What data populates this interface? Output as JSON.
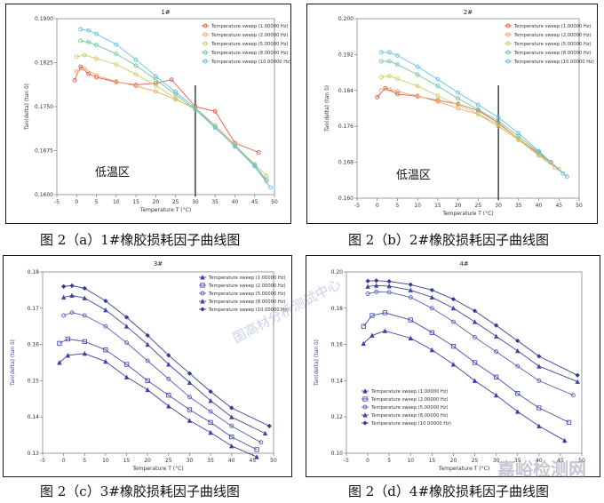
{
  "captions": {
    "a": "图 2（a）1#橡胶损耗因子曲线图",
    "b": "图 2（b）2#橡胶损耗因子曲线图",
    "c": "图 2（c）3#橡胶损耗因子曲线图",
    "d": "图 2（d）4#橡胶损耗因子曲线图"
  },
  "watermark": {
    "center": "国高材分析测试中心",
    "corner": "嘉峪检测网"
  },
  "colors": {
    "a_series": [
      "#e05a4e",
      "#f0a868",
      "#c8d060",
      "#70c8a0",
      "#68c0e8"
    ],
    "b_series": [
      "#e05a4e",
      "#f0a868",
      "#c8d060",
      "#70c8a0",
      "#68c0e8"
    ],
    "c_series": [
      "#3a3fa8",
      "#4a4fb0",
      "#5a5fb8",
      "#4046a0",
      "#343a98"
    ],
    "d_series": [
      "#3a3fa8",
      "#4a4fb0",
      "#5a5fb8",
      "#4046a0",
      "#343a98"
    ],
    "axis": "#666666",
    "cd_ylabel": "#3a3fa8"
  },
  "chart_data": [
    {
      "type": "line",
      "title": "1#",
      "xlabel": "Temperature T (°C)",
      "ylabel": "Tan(delta) (tan δ)",
      "xlim": [
        -5,
        50
      ],
      "ylim": [
        0.16,
        0.19
      ],
      "xticks": [
        -5,
        0,
        5,
        10,
        15,
        20,
        25,
        30,
        35,
        40,
        45,
        50
      ],
      "yticks": [
        0.16,
        0.1675,
        0.175,
        0.1825,
        0.19
      ],
      "ytick_labels": [
        "0.1600",
        "0.1675",
        "0.1750",
        "0.1825",
        "0.1900"
      ],
      "legend_position": "top-right",
      "annotation": "低温区",
      "vline_x": 30,
      "series": [
        {
          "name": "Temperature sweep (1.00000 Hz)",
          "x": [
            -0.5,
            1,
            3,
            5,
            10,
            15,
            20,
            24,
            30,
            35,
            40,
            46
          ],
          "y": [
            0.1795,
            0.1818,
            0.1806,
            0.18,
            0.1792,
            0.1787,
            0.179,
            0.1796,
            0.175,
            0.1742,
            0.1688,
            0.1672
          ]
        },
        {
          "name": "Temperature sweep (2.00000 Hz)",
          "x": [
            0,
            2,
            5,
            10,
            15,
            20,
            25,
            30,
            35,
            40,
            45,
            48
          ],
          "y": [
            0.181,
            0.1815,
            0.1803,
            0.1793,
            0.1785,
            0.1776,
            0.1762,
            0.1748,
            0.1718,
            0.1685,
            0.165,
            0.1622
          ]
        },
        {
          "name": "Temperature sweep (5.00000 Hz)",
          "x": [
            0,
            2,
            5,
            10,
            15,
            20,
            25,
            30,
            35,
            40,
            45,
            48
          ],
          "y": [
            0.1835,
            0.1838,
            0.1832,
            0.1822,
            0.1805,
            0.1786,
            0.1764,
            0.1745,
            0.1715,
            0.1684,
            0.1652,
            0.1632
          ]
        },
        {
          "name": "Temperature sweep (8.00000 Hz)",
          "x": [
            1,
            3,
            5,
            10,
            15,
            20,
            25,
            30,
            35,
            40,
            45,
            48
          ],
          "y": [
            0.1862,
            0.186,
            0.1855,
            0.184,
            0.182,
            0.1796,
            0.1771,
            0.1745,
            0.1714,
            0.1683,
            0.165,
            0.1625
          ]
        },
        {
          "name": "Temperature sweep (10.00000 Hz)",
          "x": [
            1,
            3,
            5,
            10,
            15,
            20,
            25,
            30,
            35,
            40,
            45,
            49
          ],
          "y": [
            0.1882,
            0.188,
            0.1874,
            0.1856,
            0.183,
            0.1802,
            0.1775,
            0.1748,
            0.1715,
            0.1682,
            0.1648,
            0.1612
          ]
        }
      ]
    },
    {
      "type": "line",
      "title": "2#",
      "xlabel": "Temperature T (°C)",
      "ylabel": "Tan(delta) (tan δ)",
      "xlim": [
        -5,
        50
      ],
      "ylim": [
        0.16,
        0.2
      ],
      "xticks": [
        -5,
        0,
        5,
        10,
        15,
        20,
        25,
        30,
        35,
        40,
        45,
        50
      ],
      "yticks": [
        0.16,
        0.168,
        0.176,
        0.184,
        0.192,
        0.2
      ],
      "ytick_labels": [
        "0.160",
        "0.168",
        "0.176",
        "0.184",
        "0.192",
        "0.200"
      ],
      "legend_position": "top-right",
      "annotation": "低温区",
      "vline_x": 30,
      "series": [
        {
          "name": "Temperature sweep (1.00000 Hz)",
          "x": [
            0,
            2,
            5,
            10,
            15,
            20,
            25,
            30,
            35,
            40,
            43
          ],
          "y": [
            0.1825,
            0.1845,
            0.1832,
            0.1827,
            0.1818,
            0.181,
            0.1795,
            0.1768,
            0.1732,
            0.17,
            0.168
          ]
        },
        {
          "name": "Temperature sweep (2.00000 Hz)",
          "x": [
            1,
            3,
            5,
            10,
            15,
            20,
            25,
            30,
            35,
            40,
            44
          ],
          "y": [
            0.184,
            0.1842,
            0.1838,
            0.1828,
            0.1815,
            0.18,
            0.1787,
            0.176,
            0.173,
            0.1695,
            0.1668
          ]
        },
        {
          "name": "Temperature sweep (5.00000 Hz)",
          "x": [
            1,
            3,
            5,
            10,
            15,
            20,
            25,
            30,
            35,
            40,
            45
          ],
          "y": [
            0.187,
            0.1872,
            0.1866,
            0.185,
            0.1828,
            0.1808,
            0.1788,
            0.1765,
            0.1732,
            0.1697,
            0.1665
          ]
        },
        {
          "name": "Temperature sweep (8.00000 Hz)",
          "x": [
            1,
            3,
            5,
            10,
            15,
            20,
            25,
            30,
            35,
            40,
            46
          ],
          "y": [
            0.1905,
            0.1905,
            0.1898,
            0.1875,
            0.185,
            0.1822,
            0.1797,
            0.1772,
            0.1738,
            0.1703,
            0.1655
          ]
        },
        {
          "name": "Temperature sweep (10.00000 Hz)",
          "x": [
            1,
            3,
            5,
            10,
            15,
            20,
            25,
            30,
            35,
            40,
            47
          ],
          "y": [
            0.1925,
            0.1925,
            0.1918,
            0.1893,
            0.1865,
            0.1835,
            0.1808,
            0.178,
            0.1745,
            0.1705,
            0.1648
          ]
        }
      ]
    },
    {
      "type": "line",
      "title": "3#",
      "xlabel": "Temperature T (°C)",
      "ylabel": "Tan(delta) (tan δ)",
      "xlim": [
        -5,
        50
      ],
      "ylim": [
        0.13,
        0.18
      ],
      "xticks": [
        -5,
        0,
        5,
        10,
        15,
        20,
        25,
        30,
        35,
        40,
        45,
        50
      ],
      "yticks": [
        0.13,
        0.14,
        0.15,
        0.16,
        0.17,
        0.18
      ],
      "ytick_labels": [
        "0.13",
        "0.14",
        "0.15",
        "0.16",
        "0.17",
        "0.18"
      ],
      "legend_position": "top-right",
      "series": [
        {
          "name": "Temperature sweep (1.00000 Hz)",
          "x": [
            -1,
            1,
            5,
            10,
            15,
            20,
            25,
            30,
            35,
            40,
            46
          ],
          "y": [
            0.155,
            0.157,
            0.1575,
            0.1553,
            0.151,
            0.1475,
            0.143,
            0.139,
            0.1357,
            0.132,
            0.129
          ]
        },
        {
          "name": "Temperature sweep (2.00000 Hz)",
          "x": [
            -1,
            1,
            5,
            10,
            15,
            20,
            25,
            30,
            35,
            40,
            46
          ],
          "y": [
            0.1603,
            0.1615,
            0.1608,
            0.1585,
            0.1545,
            0.15,
            0.146,
            0.142,
            0.1385,
            0.1345,
            0.131
          ]
        },
        {
          "name": "Temperature sweep (5.00000 Hz)",
          "x": [
            0,
            2,
            5,
            10,
            15,
            20,
            25,
            30,
            35,
            40,
            47
          ],
          "y": [
            0.168,
            0.1688,
            0.168,
            0.165,
            0.1605,
            0.1555,
            0.1505,
            0.1455,
            0.1415,
            0.1375,
            0.133
          ]
        },
        {
          "name": "Temperature sweep (8.00000 Hz)",
          "x": [
            0,
            2,
            5,
            10,
            15,
            20,
            25,
            30,
            35,
            40,
            48
          ],
          "y": [
            0.173,
            0.1735,
            0.1728,
            0.1695,
            0.165,
            0.16,
            0.1545,
            0.1495,
            0.1445,
            0.14,
            0.1355
          ]
        },
        {
          "name": "Temperature sweep (10.00000 Hz)",
          "x": [
            0,
            2,
            5,
            10,
            15,
            20,
            25,
            30,
            35,
            40,
            49
          ],
          "y": [
            0.176,
            0.1762,
            0.1755,
            0.172,
            0.1675,
            0.1625,
            0.157,
            0.152,
            0.147,
            0.1425,
            0.1375
          ]
        }
      ]
    },
    {
      "type": "line",
      "title": "4#",
      "xlabel": "Temperature T (°C)",
      "ylabel": "Tan(delta) (tan δ)",
      "xlim": [
        -5,
        50
      ],
      "ylim": [
        0.1,
        0.2
      ],
      "xticks": [
        -5,
        0,
        5,
        10,
        15,
        20,
        25,
        30,
        35,
        40,
        45,
        50
      ],
      "yticks": [
        0.1,
        0.12,
        0.14,
        0.16,
        0.18,
        0.2
      ],
      "ytick_labels": [
        "0.10",
        "0.12",
        "0.14",
        "0.16",
        "0.18",
        "0.20"
      ],
      "legend_position": "bottom-left",
      "series": [
        {
          "name": "Temperature sweep (1.00000 Hz)",
          "x": [
            -1,
            1,
            4,
            10,
            15,
            20,
            25,
            30,
            35,
            40,
            46
          ],
          "y": [
            0.1605,
            0.165,
            0.1675,
            0.1635,
            0.157,
            0.149,
            0.14,
            0.132,
            0.123,
            0.115,
            0.107
          ]
        },
        {
          "name": "Temperature sweep (2.00000 Hz)",
          "x": [
            -1,
            1,
            4,
            10,
            15,
            20,
            25,
            30,
            35,
            40,
            47
          ],
          "y": [
            0.17,
            0.176,
            0.1775,
            0.1735,
            0.1665,
            0.159,
            0.15,
            0.142,
            0.133,
            0.125,
            0.117
          ]
        },
        {
          "name": "Temperature sweep (5.00000 Hz)",
          "x": [
            0,
            2,
            5,
            10,
            15,
            20,
            25,
            30,
            35,
            40,
            48
          ],
          "y": [
            0.188,
            0.189,
            0.1888,
            0.186,
            0.18,
            0.1725,
            0.164,
            0.156,
            0.148,
            0.14,
            0.132
          ]
        },
        {
          "name": "Temperature sweep (8.00000 Hz)",
          "x": [
            0,
            2,
            5,
            10,
            15,
            20,
            25,
            30,
            35,
            40,
            49
          ],
          "y": [
            0.192,
            0.1925,
            0.1922,
            0.19,
            0.186,
            0.18,
            0.1725,
            0.1645,
            0.1565,
            0.148,
            0.1395
          ]
        },
        {
          "name": "Temperature sweep (10.00000 Hz)",
          "x": [
            0,
            2,
            5,
            10,
            15,
            20,
            25,
            30,
            35,
            40,
            49
          ],
          "y": [
            0.195,
            0.1952,
            0.1948,
            0.193,
            0.19,
            0.185,
            0.1785,
            0.1705,
            0.162,
            0.1535,
            0.143
          ]
        }
      ]
    }
  ]
}
